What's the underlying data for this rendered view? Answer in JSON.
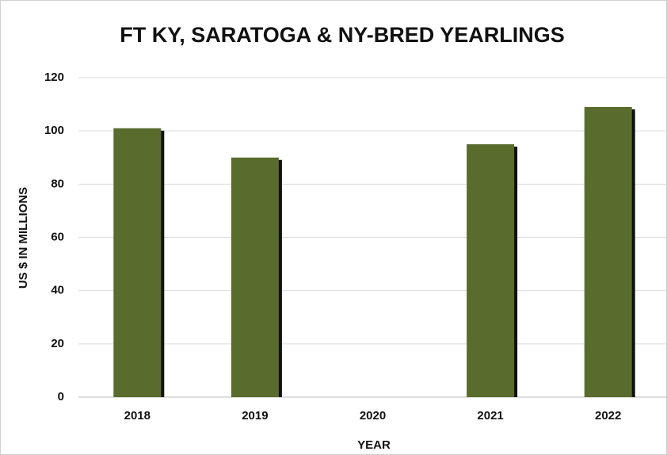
{
  "chart_data": {
    "type": "bar",
    "title": "FT KY, SARATOGA & NY-BRED YEARLINGS",
    "x_label": "YEAR",
    "y_label": "US $ IN MILLIONS",
    "categories": [
      "2018",
      "2019",
      "2020",
      "2021",
      "2022"
    ],
    "values": [
      101,
      90,
      null,
      95,
      109
    ],
    "color": "#5a6b2e",
    "ylim": [
      0,
      120
    ],
    "yticks": [
      0,
      20,
      40,
      60,
      80,
      100,
      120
    ],
    "grid": true
  }
}
